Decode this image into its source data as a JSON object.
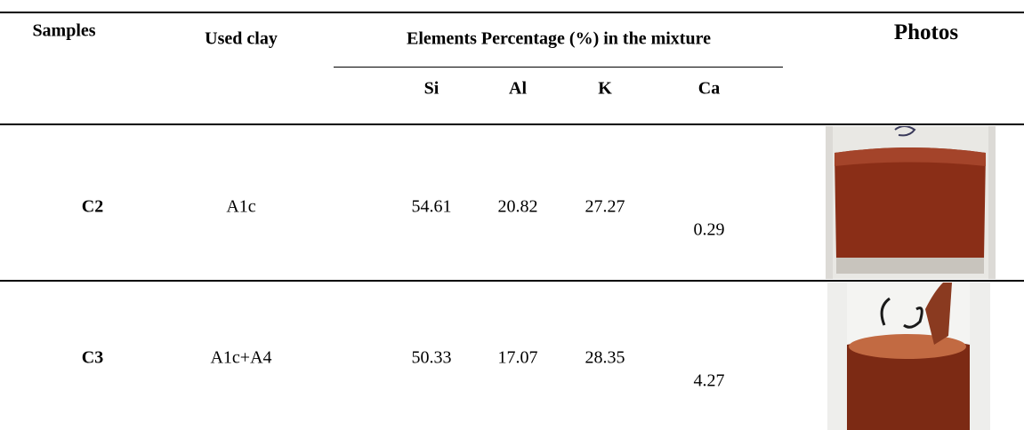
{
  "header": {
    "samples": "Samples",
    "used_clay": "Used clay",
    "elements": "Elements Percentage (%) in the mixture",
    "photos": "Photos"
  },
  "subheaders": [
    "Si",
    "Al",
    "K",
    "Ca"
  ],
  "rows": [
    {
      "sample": "C2",
      "clay": "A1c",
      "values": [
        54.61,
        20.82,
        27.27,
        0.29
      ]
    },
    {
      "sample": "C3",
      "clay": "A1c+A4",
      "values": [
        50.33,
        17.07,
        28.35,
        4.27
      ]
    }
  ]
}
